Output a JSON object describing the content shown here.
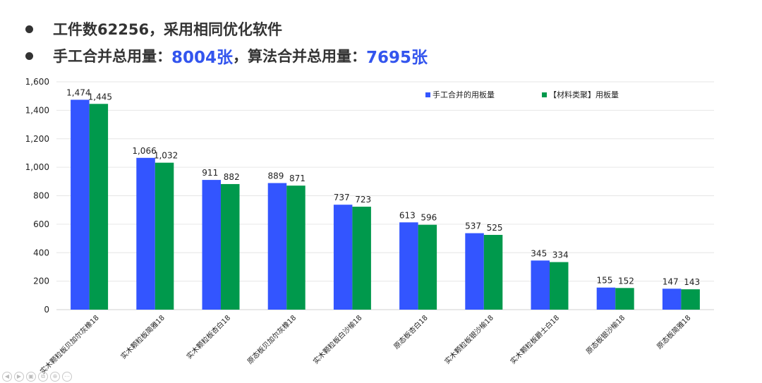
{
  "bullets": [
    {
      "text": "工件数62256，采用相同优化软件"
    },
    {
      "prefix": "手工合并总用量：",
      "value1": "8004张",
      "middle": "，算法合并总用量：",
      "value2": "7695张"
    }
  ],
  "colors": {
    "series_1": "#3355ff",
    "series_2": "#00994c",
    "highlight": "#3355ee"
  },
  "chart_data": {
    "type": "bar",
    "title": "",
    "xlabel": "",
    "ylabel": "",
    "categories": [
      "实木颗粒板贝加尔灰橡18",
      "实木颗粒板简雅18",
      "实木颗粒板杏白18",
      "原态板贝加尔灰橡18",
      "实木颗粒板白沙榆18",
      "原态板杏白18",
      "实木颗粒板银沙榆18",
      "实木颗粒板爵士白18",
      "原态板银沙榆18",
      "原态板简雅18"
    ],
    "series": [
      {
        "name": "手工合并的用板量",
        "values": [
          1474,
          1066,
          911,
          889,
          737,
          613,
          537,
          345,
          155,
          147
        ]
      },
      {
        "name": "【材料类聚】用板量",
        "values": [
          1445,
          1032,
          882,
          871,
          723,
          596,
          525,
          334,
          152,
          143
        ]
      }
    ],
    "value_labels": [
      [
        "1,474",
        "1,066",
        "911",
        "889",
        "737",
        "613",
        "537",
        "345",
        "155",
        "147"
      ],
      [
        "1,445",
        "1,032",
        "882",
        "871",
        "723",
        "596",
        "525",
        "334",
        "152",
        "143"
      ]
    ],
    "yticks": [
      "0",
      "200",
      "400",
      "600",
      "800",
      "1,000",
      "1,200",
      "1,400",
      "1,600"
    ],
    "ylim": [
      0,
      1600
    ],
    "grid": true,
    "legend_position": "top-right"
  },
  "slide_controls": [
    "◀",
    "▶",
    "▣",
    "⧉",
    "⊕",
    "⋯"
  ]
}
